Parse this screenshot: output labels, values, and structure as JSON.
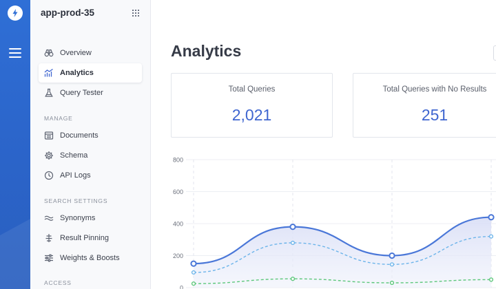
{
  "app": {
    "name": "app-prod-35"
  },
  "rail": {
    "menu_icon": "hamburger-menu-icon",
    "logo_icon": "lightning-bolt-icon"
  },
  "sidebar": {
    "primary_items": [
      {
        "label": "Overview",
        "icon": "binoculars-icon",
        "active": false
      },
      {
        "label": "Analytics",
        "icon": "trend-chart-icon",
        "active": true
      },
      {
        "label": "Query Tester",
        "icon": "flask-icon",
        "active": false
      }
    ],
    "sections": [
      {
        "title": "MANAGE",
        "items": [
          {
            "label": "Documents",
            "icon": "document-list-icon"
          },
          {
            "label": "Schema",
            "icon": "gear-icon"
          },
          {
            "label": "API Logs",
            "icon": "clock-icon"
          }
        ]
      },
      {
        "title": "SEARCH SETTINGS",
        "items": [
          {
            "label": "Synonyms",
            "icon": "wavy-lines-icon"
          },
          {
            "label": "Result Pinning",
            "icon": "pin-icon"
          },
          {
            "label": "Weights & Boosts",
            "icon": "sliders-icon"
          }
        ]
      },
      {
        "title": "ACCESS",
        "items": []
      }
    ]
  },
  "main": {
    "title": "Analytics",
    "cards": [
      {
        "label": "Total Queries",
        "value": "2,021"
      },
      {
        "label": "Total Queries with No Results",
        "value": "251"
      }
    ]
  },
  "colors": {
    "rail": "#2f6fd6",
    "accent": "#3f66d0",
    "series_total": "#4a77d8",
    "series_dashed_blue": "#6cb4ea",
    "series_dashed_green": "#5cc77a"
  },
  "chart_data": {
    "type": "area",
    "title": "",
    "xlabel": "",
    "ylabel": "",
    "yticks": [
      "800",
      "600",
      "400",
      "200",
      "0"
    ],
    "ylim": [
      0,
      800
    ],
    "grid": true,
    "series": [
      {
        "style": "solid-area",
        "values": [
          150,
          380,
          200,
          440
        ]
      },
      {
        "style": "dashed",
        "values": [
          95,
          280,
          145,
          320
        ]
      },
      {
        "style": "dashed",
        "values": [
          25,
          55,
          30,
          50
        ]
      }
    ]
  }
}
